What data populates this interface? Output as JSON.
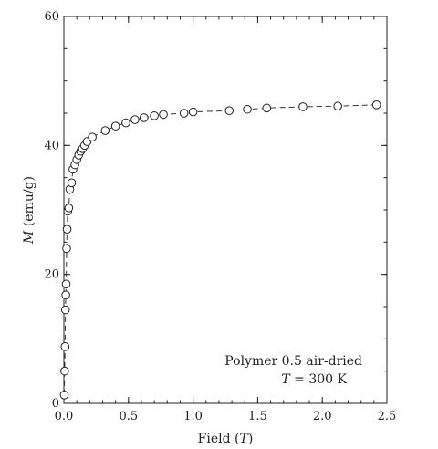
{
  "chart_data": {
    "type": "scatter",
    "xlabel": {
      "prefix": "Field (",
      "var": "T",
      "suffix": ")"
    },
    "ylabel": {
      "var": "M",
      "suffix": " (emu/g)"
    },
    "xlim": [
      0,
      2.5
    ],
    "ylim": [
      0,
      60
    ],
    "x_ticks": [
      "0.0",
      "0.5",
      "1.0",
      "1.5",
      "2.0",
      "2.5"
    ],
    "y_ticks": [
      "0",
      "20",
      "40",
      "60"
    ],
    "annotation": {
      "line1": "Polymer 0.5 air-dried",
      "line2_var": "T",
      "line2_rest": " = 300 K"
    },
    "series": [
      {
        "marker": "open-circle",
        "line": "dashed",
        "color": "#222222",
        "x": [
          0.003,
          0.006,
          0.009,
          0.012,
          0.015,
          0.018,
          0.021,
          0.025,
          0.03,
          0.038,
          0.046,
          0.06,
          0.07,
          0.085,
          0.1,
          0.115,
          0.13,
          0.145,
          0.16,
          0.18,
          0.22,
          0.32,
          0.4,
          0.48,
          0.55,
          0.62,
          0.7,
          0.77,
          0.93,
          1.0,
          1.28,
          1.42,
          1.57,
          1.85,
          2.12,
          2.42
        ],
        "y": [
          1.3,
          5.0,
          8.8,
          14.5,
          16.8,
          18.5,
          24.0,
          27.0,
          29.8,
          30.3,
          33.2,
          34.2,
          36.3,
          37.0,
          37.8,
          38.5,
          39.1,
          39.5,
          40.0,
          40.6,
          41.3,
          42.3,
          43.0,
          43.5,
          44.0,
          44.3,
          44.6,
          44.8,
          45.0,
          45.2,
          45.4,
          45.6,
          45.8,
          46.0,
          46.1,
          46.3
        ]
      }
    ]
  }
}
